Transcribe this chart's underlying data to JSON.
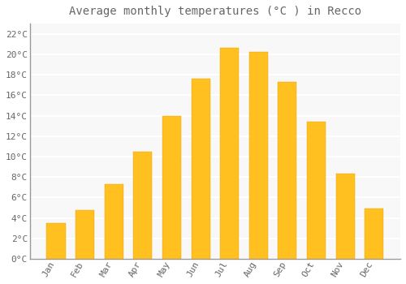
{
  "title": "Average monthly temperatures (°C ) in Recco",
  "months": [
    "Jan",
    "Feb",
    "Mar",
    "Apr",
    "May",
    "Jun",
    "Jul",
    "Aug",
    "Sep",
    "Oct",
    "Nov",
    "Dec"
  ],
  "values": [
    3.5,
    4.8,
    7.3,
    10.5,
    14.0,
    17.6,
    20.6,
    20.2,
    17.3,
    13.4,
    8.3,
    4.9
  ],
  "bar_color_top": "#FFC020",
  "bar_color_bottom": "#FFA000",
  "background_color": "#FFFFFF",
  "plot_bg_color": "#F8F8F8",
  "grid_color": "#FFFFFF",
  "text_color": "#666666",
  "spine_color": "#999999",
  "ylim": [
    0,
    23
  ],
  "yticks": [
    0,
    2,
    4,
    6,
    8,
    10,
    12,
    14,
    16,
    18,
    20,
    22
  ],
  "title_fontsize": 10,
  "tick_fontsize": 8,
  "font_family": "monospace"
}
